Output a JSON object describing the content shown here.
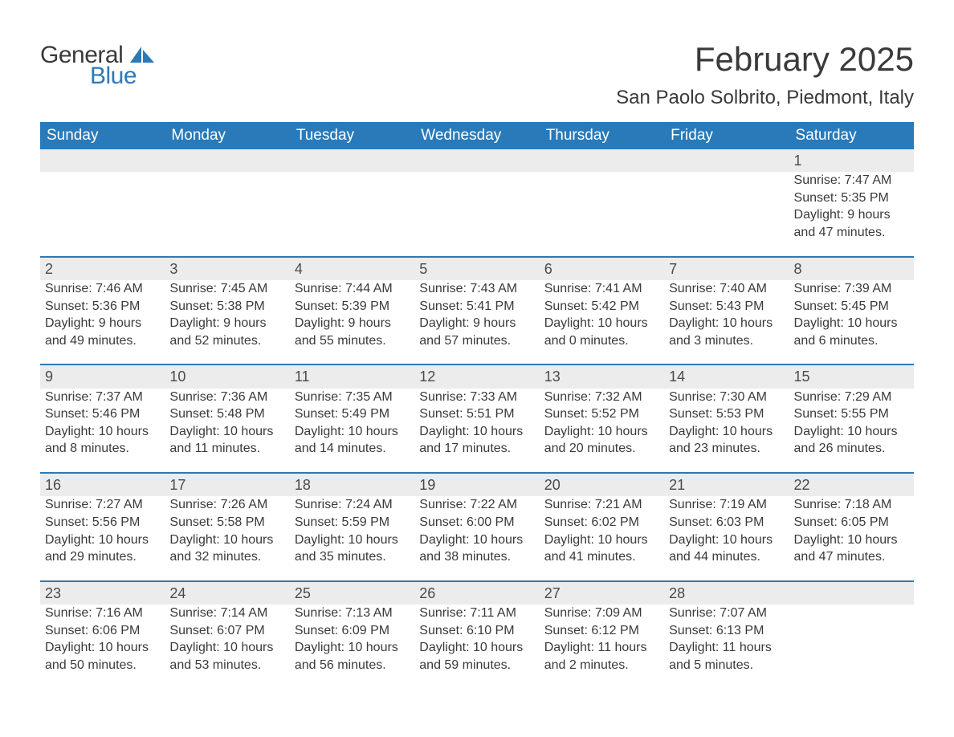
{
  "logo": {
    "text1": "General",
    "text2": "Blue",
    "sail_color": "#2a7ab9"
  },
  "title": "February 2025",
  "location": "San Paolo Solbrito, Piedmont, Italy",
  "colors": {
    "header_bg": "#2a7ab9",
    "header_text": "#ffffff",
    "row_divider": "#2a7ab9",
    "daynum_bg": "#ececec",
    "body_text": "#3a3a3a",
    "page_bg": "#ffffff"
  },
  "day_headers": [
    "Sunday",
    "Monday",
    "Tuesday",
    "Wednesday",
    "Thursday",
    "Friday",
    "Saturday"
  ],
  "weeks": [
    [
      null,
      null,
      null,
      null,
      null,
      null,
      {
        "n": "1",
        "sunrise": "Sunrise: 7:47 AM",
        "sunset": "Sunset: 5:35 PM",
        "day1": "Daylight: 9 hours",
        "day2": "and 47 minutes."
      }
    ],
    [
      {
        "n": "2",
        "sunrise": "Sunrise: 7:46 AM",
        "sunset": "Sunset: 5:36 PM",
        "day1": "Daylight: 9 hours",
        "day2": "and 49 minutes."
      },
      {
        "n": "3",
        "sunrise": "Sunrise: 7:45 AM",
        "sunset": "Sunset: 5:38 PM",
        "day1": "Daylight: 9 hours",
        "day2": "and 52 minutes."
      },
      {
        "n": "4",
        "sunrise": "Sunrise: 7:44 AM",
        "sunset": "Sunset: 5:39 PM",
        "day1": "Daylight: 9 hours",
        "day2": "and 55 minutes."
      },
      {
        "n": "5",
        "sunrise": "Sunrise: 7:43 AM",
        "sunset": "Sunset: 5:41 PM",
        "day1": "Daylight: 9 hours",
        "day2": "and 57 minutes."
      },
      {
        "n": "6",
        "sunrise": "Sunrise: 7:41 AM",
        "sunset": "Sunset: 5:42 PM",
        "day1": "Daylight: 10 hours",
        "day2": "and 0 minutes."
      },
      {
        "n": "7",
        "sunrise": "Sunrise: 7:40 AM",
        "sunset": "Sunset: 5:43 PM",
        "day1": "Daylight: 10 hours",
        "day2": "and 3 minutes."
      },
      {
        "n": "8",
        "sunrise": "Sunrise: 7:39 AM",
        "sunset": "Sunset: 5:45 PM",
        "day1": "Daylight: 10 hours",
        "day2": "and 6 minutes."
      }
    ],
    [
      {
        "n": "9",
        "sunrise": "Sunrise: 7:37 AM",
        "sunset": "Sunset: 5:46 PM",
        "day1": "Daylight: 10 hours",
        "day2": "and 8 minutes."
      },
      {
        "n": "10",
        "sunrise": "Sunrise: 7:36 AM",
        "sunset": "Sunset: 5:48 PM",
        "day1": "Daylight: 10 hours",
        "day2": "and 11 minutes."
      },
      {
        "n": "11",
        "sunrise": "Sunrise: 7:35 AM",
        "sunset": "Sunset: 5:49 PM",
        "day1": "Daylight: 10 hours",
        "day2": "and 14 minutes."
      },
      {
        "n": "12",
        "sunrise": "Sunrise: 7:33 AM",
        "sunset": "Sunset: 5:51 PM",
        "day1": "Daylight: 10 hours",
        "day2": "and 17 minutes."
      },
      {
        "n": "13",
        "sunrise": "Sunrise: 7:32 AM",
        "sunset": "Sunset: 5:52 PM",
        "day1": "Daylight: 10 hours",
        "day2": "and 20 minutes."
      },
      {
        "n": "14",
        "sunrise": "Sunrise: 7:30 AM",
        "sunset": "Sunset: 5:53 PM",
        "day1": "Daylight: 10 hours",
        "day2": "and 23 minutes."
      },
      {
        "n": "15",
        "sunrise": "Sunrise: 7:29 AM",
        "sunset": "Sunset: 5:55 PM",
        "day1": "Daylight: 10 hours",
        "day2": "and 26 minutes."
      }
    ],
    [
      {
        "n": "16",
        "sunrise": "Sunrise: 7:27 AM",
        "sunset": "Sunset: 5:56 PM",
        "day1": "Daylight: 10 hours",
        "day2": "and 29 minutes."
      },
      {
        "n": "17",
        "sunrise": "Sunrise: 7:26 AM",
        "sunset": "Sunset: 5:58 PM",
        "day1": "Daylight: 10 hours",
        "day2": "and 32 minutes."
      },
      {
        "n": "18",
        "sunrise": "Sunrise: 7:24 AM",
        "sunset": "Sunset: 5:59 PM",
        "day1": "Daylight: 10 hours",
        "day2": "and 35 minutes."
      },
      {
        "n": "19",
        "sunrise": "Sunrise: 7:22 AM",
        "sunset": "Sunset: 6:00 PM",
        "day1": "Daylight: 10 hours",
        "day2": "and 38 minutes."
      },
      {
        "n": "20",
        "sunrise": "Sunrise: 7:21 AM",
        "sunset": "Sunset: 6:02 PM",
        "day1": "Daylight: 10 hours",
        "day2": "and 41 minutes."
      },
      {
        "n": "21",
        "sunrise": "Sunrise: 7:19 AM",
        "sunset": "Sunset: 6:03 PM",
        "day1": "Daylight: 10 hours",
        "day2": "and 44 minutes."
      },
      {
        "n": "22",
        "sunrise": "Sunrise: 7:18 AM",
        "sunset": "Sunset: 6:05 PM",
        "day1": "Daylight: 10 hours",
        "day2": "and 47 minutes."
      }
    ],
    [
      {
        "n": "23",
        "sunrise": "Sunrise: 7:16 AM",
        "sunset": "Sunset: 6:06 PM",
        "day1": "Daylight: 10 hours",
        "day2": "and 50 minutes."
      },
      {
        "n": "24",
        "sunrise": "Sunrise: 7:14 AM",
        "sunset": "Sunset: 6:07 PM",
        "day1": "Daylight: 10 hours",
        "day2": "and 53 minutes."
      },
      {
        "n": "25",
        "sunrise": "Sunrise: 7:13 AM",
        "sunset": "Sunset: 6:09 PM",
        "day1": "Daylight: 10 hours",
        "day2": "and 56 minutes."
      },
      {
        "n": "26",
        "sunrise": "Sunrise: 7:11 AM",
        "sunset": "Sunset: 6:10 PM",
        "day1": "Daylight: 10 hours",
        "day2": "and 59 minutes."
      },
      {
        "n": "27",
        "sunrise": "Sunrise: 7:09 AM",
        "sunset": "Sunset: 6:12 PM",
        "day1": "Daylight: 11 hours",
        "day2": "and 2 minutes."
      },
      {
        "n": "28",
        "sunrise": "Sunrise: 7:07 AM",
        "sunset": "Sunset: 6:13 PM",
        "day1": "Daylight: 11 hours",
        "day2": "and 5 minutes."
      },
      null
    ]
  ]
}
